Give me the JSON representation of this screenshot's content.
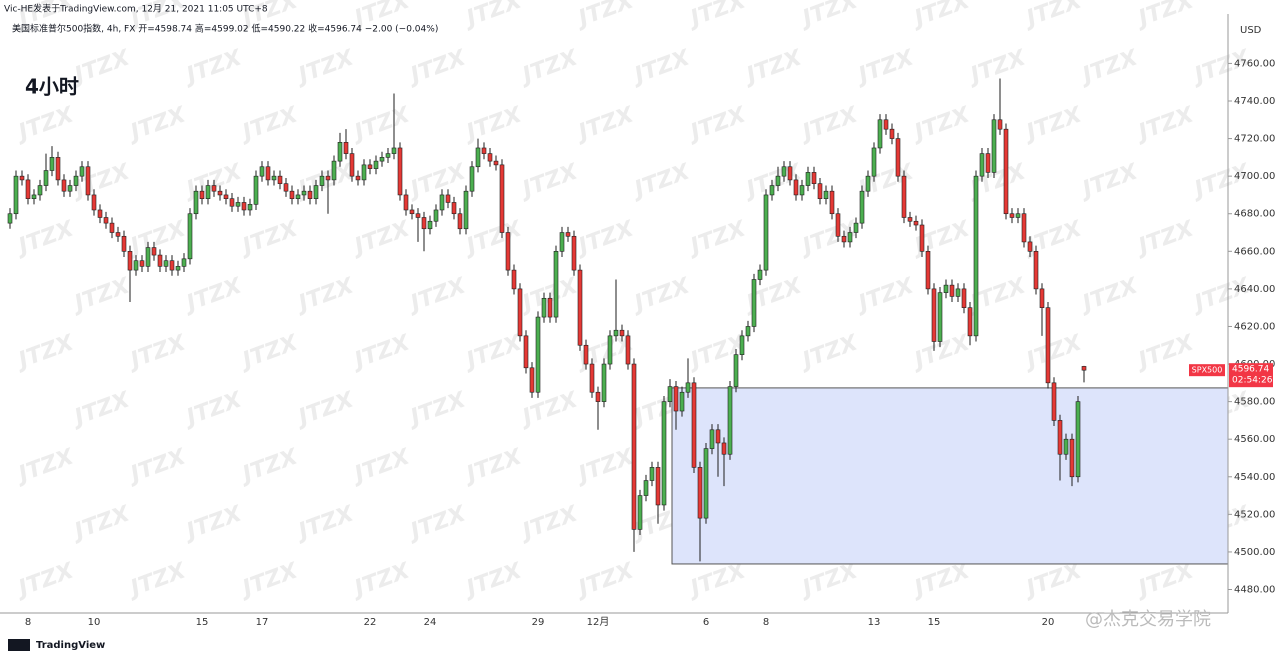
{
  "header": "Vic-HE发表于TradingView.com, 12月 21, 2021 11:05 UTC+8",
  "footer_logo": "TradingView",
  "credit": "@杰克交易学院",
  "watermark": "JTZX",
  "chart_data": {
    "type": "candlestick",
    "subtitle": "美国标准普尔500指数, 4h, FX  开=4598.74  高=4599.02  低=4590.22  收=4596.74  −2.00 (−0.04%)",
    "title": "4小时",
    "currency": "USD",
    "symbol": "SPX500",
    "countdown": "02:54:26",
    "colors": {
      "up": "#4caf50",
      "down": "#e53935",
      "outline": "#1e1e1e",
      "zone": "#dde4fb",
      "tag": "#f23645"
    },
    "zone": {
      "top": 4587.3,
      "bottom": 4493.6
    },
    "categories": [
      null,
      null,
      null,
      "8",
      null,
      null,
      null,
      null,
      null,
      null,
      null,
      null,
      null,
      null,
      "10",
      null,
      null,
      null,
      null,
      null,
      null,
      null,
      null,
      null,
      null,
      null,
      null,
      null,
      null,
      null,
      null,
      null,
      "15",
      null,
      null,
      null,
      null,
      null,
      null,
      null,
      null,
      null,
      "17",
      null,
      null,
      null,
      null,
      null,
      null,
      null,
      null,
      null,
      null,
      null,
      null,
      null,
      null,
      null,
      null,
      null,
      "22",
      null,
      null,
      null,
      null,
      null,
      null,
      null,
      null,
      null,
      "24",
      null,
      null,
      null,
      null,
      null,
      null,
      null,
      null,
      null,
      null,
      null,
      null,
      null,
      null,
      null,
      null,
      null,
      "29",
      null,
      null,
      null,
      null,
      null,
      null,
      null,
      null,
      null,
      "12月",
      null,
      null,
      null,
      null,
      null,
      null,
      null,
      null,
      null,
      null,
      null,
      null,
      null,
      null,
      null,
      null,
      null,
      "6",
      null,
      null,
      null,
      null,
      null,
      null,
      null,
      null,
      null,
      "8",
      null,
      null,
      null,
      null,
      null,
      null,
      null,
      null,
      null,
      null,
      null,
      null,
      null,
      null,
      null,
      null,
      null,
      "13",
      null,
      null,
      null,
      null,
      null,
      null,
      null,
      null,
      null,
      "15",
      null,
      null,
      null,
      null,
      null,
      null,
      null,
      null,
      null,
      null,
      null,
      null,
      null,
      null,
      null,
      null,
      null,
      null,
      "20",
      null,
      null,
      null,
      null,
      null,
      null
    ],
    "open": [
      4675,
      4680,
      4700,
      4698,
      4688,
      4690,
      4695,
      4703,
      4710,
      4698,
      4692,
      4695,
      4700,
      4705,
      4690,
      4682,
      4678,
      4675,
      4670,
      4668,
      4660,
      4650,
      4655,
      4652,
      4662,
      4658,
      4652,
      4655,
      4650,
      4652,
      4656,
      4680,
      4692,
      4688,
      4695,
      4692,
      4690,
      4688,
      4684,
      4686,
      4682,
      4685,
      4700,
      4705,
      4698,
      4700,
      4696,
      4692,
      4688,
      4690,
      4692,
      4688,
      4695,
      4700,
      4698,
      4708,
      4718,
      4712,
      4700,
      4698,
      4706,
      4704,
      4708,
      4710,
      4712,
      4715,
      4690,
      4682,
      4680,
      4678,
      4672,
      4676,
      4682,
      4690,
      4686,
      4680,
      4672,
      4692,
      4705,
      4715,
      4712,
      4708,
      4706,
      4670,
      4650,
      4640,
      4615,
      4598,
      4585,
      4625,
      4635,
      4625,
      4660,
      4670,
      4668,
      4650,
      4610,
      4600,
      4585,
      4580,
      4600,
      4615,
      4618,
      4615,
      4600,
      4512,
      4530,
      4538,
      4545,
      4525,
      4580,
      4588,
      4575,
      4585,
      4590,
      4545,
      4518,
      4555,
      4565,
      4558,
      4552,
      4588,
      4605,
      4615,
      4620,
      4645,
      4650,
      4690,
      4695,
      4700,
      4705,
      4698,
      4690,
      4695,
      4702,
      4696,
      4688,
      4692,
      4680,
      4668,
      4665,
      4670,
      4675,
      4692,
      4700,
      4715,
      4730,
      4725,
      4720,
      4700,
      4678,
      4676,
      4674,
      4660,
      4640,
      4612,
      4638,
      4642,
      4636,
      4640,
      4630,
      4615,
      4700,
      4712,
      4702,
      4730,
      4725,
      4680,
      4678,
      4680,
      4665,
      4660,
      4640,
      4630,
      4590,
      4570,
      4552,
      4560,
      4540,
      4598.74
    ],
    "high": [
      4683,
      4703,
      4703,
      4701,
      4693,
      4698,
      4712,
      4716,
      4713,
      4701,
      4698,
      4703,
      4708,
      4708,
      4693,
      4685,
      4681,
      4678,
      4673,
      4671,
      4663,
      4658,
      4658,
      4665,
      4665,
      4661,
      4658,
      4658,
      4655,
      4659,
      4683,
      4695,
      4695,
      4698,
      4698,
      4695,
      4693,
      4691,
      4689,
      4689,
      4688,
      4703,
      4708,
      4708,
      4703,
      4703,
      4699,
      4695,
      4693,
      4695,
      4695,
      4698,
      4703,
      4703,
      4711,
      4723,
      4725,
      4715,
      4703,
      4709,
      4709,
      4711,
      4713,
      4715,
      4744,
      4718,
      4693,
      4685,
      4683,
      4681,
      4679,
      4685,
      4693,
      4693,
      4689,
      4683,
      4695,
      4708,
      4720,
      4718,
      4715,
      4711,
      4709,
      4673,
      4653,
      4643,
      4618,
      4601,
      4628,
      4638,
      4638,
      4663,
      4673,
      4673,
      4671,
      4653,
      4613,
      4603,
      4588,
      4603,
      4618,
      4645,
      4621,
      4618,
      4603,
      4533,
      4541,
      4548,
      4548,
      4583,
      4592,
      4591,
      4588,
      4603,
      4593,
      4548,
      4558,
      4568,
      4568,
      4561,
      4591,
      4608,
      4618,
      4623,
      4648,
      4653,
      4693,
      4698,
      4705,
      4708,
      4708,
      4701,
      4698,
      4705,
      4705,
      4699,
      4695,
      4695,
      4683,
      4671,
      4673,
      4678,
      4695,
      4703,
      4718,
      4733,
      4733,
      4728,
      4723,
      4703,
      4681,
      4679,
      4677,
      4663,
      4643,
      4641,
      4645,
      4645,
      4643,
      4643,
      4633,
      4703,
      4715,
      4715,
      4733,
      4752,
      4728,
      4683,
      4683,
      4683,
      4668,
      4663,
      4643,
      4633,
      4593,
      4573,
      4563,
      4563,
      4583,
      4599.02
    ],
    "low": [
      4672,
      4677,
      4695,
      4685,
      4685,
      4687,
      4692,
      4700,
      4695,
      4689,
      4689,
      4692,
      4697,
      4687,
      4679,
      4675,
      4672,
      4667,
      4665,
      4657,
      4633,
      4647,
      4649,
      4649,
      4655,
      4649,
      4649,
      4647,
      4647,
      4649,
      4653,
      4677,
      4685,
      4685,
      4689,
      4687,
      4685,
      4681,
      4681,
      4679,
      4679,
      4682,
      4697,
      4695,
      4695,
      4693,
      4689,
      4685,
      4685,
      4687,
      4685,
      4685,
      4692,
      4680,
      4695,
      4705,
      4709,
      4697,
      4695,
      4695,
      4701,
      4701,
      4705,
      4707,
      4709,
      4687,
      4679,
      4677,
      4665,
      4660,
      4669,
      4673,
      4679,
      4683,
      4677,
      4669,
      4669,
      4689,
      4702,
      4709,
      4705,
      4703,
      4667,
      4647,
      4637,
      4612,
      4595,
      4582,
      4582,
      4622,
      4622,
      4622,
      4657,
      4665,
      4647,
      4607,
      4597,
      4582,
      4565,
      4577,
      4597,
      4612,
      4612,
      4597,
      4500,
      4509,
      4527,
      4535,
      4515,
      4522,
      4577,
      4565,
      4572,
      4582,
      4542,
      4495,
      4515,
      4552,
      4540,
      4535,
      4549,
      4585,
      4602,
      4612,
      4617,
      4642,
      4647,
      4687,
      4692,
      4697,
      4695,
      4687,
      4687,
      4692,
      4693,
      4685,
      4685,
      4677,
      4665,
      4662,
      4662,
      4667,
      4672,
      4689,
      4697,
      4712,
      4722,
      4717,
      4697,
      4675,
      4673,
      4671,
      4657,
      4637,
      4607,
      4609,
      4635,
      4633,
      4633,
      4627,
      4610,
      4612,
      4697,
      4699,
      4699,
      4722,
      4677,
      4675,
      4675,
      4662,
      4657,
      4637,
      4615,
      4587,
      4567,
      4538,
      4549,
      4535,
      4537,
      4590.22
    ],
    "close": [
      4680,
      4700,
      4698,
      4688,
      4690,
      4695,
      4703,
      4710,
      4698,
      4692,
      4695,
      4700,
      4705,
      4690,
      4682,
      4678,
      4675,
      4670,
      4668,
      4660,
      4650,
      4655,
      4652,
      4662,
      4658,
      4652,
      4655,
      4650,
      4652,
      4656,
      4680,
      4692,
      4688,
      4695,
      4692,
      4690,
      4688,
      4684,
      4686,
      4682,
      4685,
      4700,
      4705,
      4698,
      4700,
      4696,
      4692,
      4688,
      4690,
      4692,
      4688,
      4695,
      4700,
      4698,
      4708,
      4718,
      4712,
      4700,
      4698,
      4706,
      4704,
      4708,
      4710,
      4712,
      4715,
      4690,
      4682,
      4680,
      4678,
      4672,
      4676,
      4682,
      4690,
      4686,
      4680,
      4672,
      4692,
      4705,
      4715,
      4712,
      4708,
      4706,
      4670,
      4650,
      4640,
      4615,
      4598,
      4585,
      4625,
      4635,
      4625,
      4660,
      4670,
      4668,
      4650,
      4610,
      4600,
      4585,
      4580,
      4600,
      4615,
      4618,
      4615,
      4600,
      4512,
      4530,
      4538,
      4545,
      4525,
      4580,
      4588,
      4575,
      4585,
      4590,
      4545,
      4518,
      4555,
      4565,
      4558,
      4552,
      4588,
      4605,
      4615,
      4620,
      4645,
      4650,
      4690,
      4695,
      4700,
      4705,
      4698,
      4690,
      4695,
      4702,
      4696,
      4688,
      4692,
      4680,
      4668,
      4665,
      4670,
      4675,
      4692,
      4700,
      4715,
      4730,
      4725,
      4720,
      4700,
      4678,
      4676,
      4674,
      4660,
      4640,
      4612,
      4638,
      4642,
      4636,
      4640,
      4630,
      4615,
      4700,
      4712,
      4702,
      4730,
      4725,
      4680,
      4678,
      4680,
      4665,
      4660,
      4640,
      4630,
      4590,
      4570,
      4552,
      4560,
      4540,
      4580,
      4596.74
    ],
    "ylim": [
      4467.5,
      4786.3
    ],
    "yticks": [
      {
        "value": 4480,
        "label": "4480.00"
      },
      {
        "value": 4500,
        "label": "4500.00"
      },
      {
        "value": 4520,
        "label": "4520.00"
      },
      {
        "value": 4540,
        "label": "4540.00"
      },
      {
        "value": 4560,
        "label": "4560.00"
      },
      {
        "value": 4580,
        "label": "4580.00"
      },
      {
        "value": 4600,
        "label": "4600.00"
      },
      {
        "value": 4620,
        "label": "4620.00"
      },
      {
        "value": 4640,
        "label": "4640.00"
      },
      {
        "value": 4660,
        "label": "4660.00"
      },
      {
        "value": 4680,
        "label": "4680.00"
      },
      {
        "value": 4700,
        "label": "4700.00"
      },
      {
        "value": 4720,
        "label": "4720.00"
      },
      {
        "value": 4740,
        "label": "4740.00"
      },
      {
        "value": 4760,
        "label": "4760.00"
      }
    ]
  }
}
